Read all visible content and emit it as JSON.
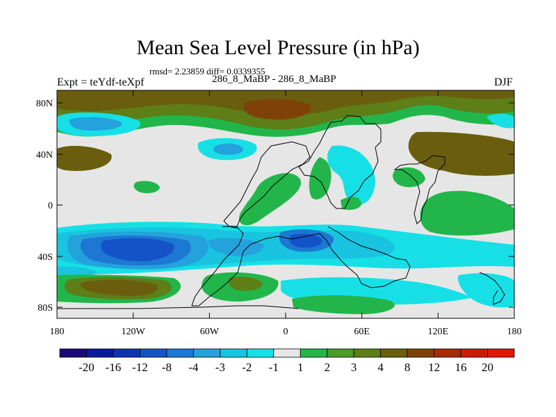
{
  "title": "Mean Sea Level Pressure (in hPa)",
  "stats": "rmsd= 2.23859 diff= 0.0339355",
  "expt": "Expt = teYdf-teXpf",
  "runs": "286_8_MaBP - 286_8_MaBP",
  "season": "DJF",
  "axes": {
    "lat_ticks": [
      "80N",
      "40N",
      "0",
      "40S",
      "80S"
    ],
    "lon_ticks": [
      "180",
      "120W",
      "60W",
      "0",
      "60E",
      "120E",
      "180"
    ]
  },
  "colorbar": {
    "labels": [
      "-20",
      "-16",
      "-12",
      "-8",
      "-4",
      "-3",
      "-2",
      "-1",
      "1",
      "2",
      "3",
      "4",
      "8",
      "12",
      "16",
      "20"
    ],
    "colors": [
      "#1a0a78",
      "#0c1aa0",
      "#1032b4",
      "#1452c8",
      "#1c78d2",
      "#24a2dc",
      "#18c4e0",
      "#16e0e6",
      "#e6e6e6",
      "#22b64a",
      "#4a9a2c",
      "#5e7e18",
      "#6a5e0e",
      "#7e4208",
      "#a82a06",
      "#c81e08",
      "#e01808"
    ]
  },
  "map_colors": {
    "land_outline": "#000000",
    "background_field": "#e6e6e6"
  }
}
